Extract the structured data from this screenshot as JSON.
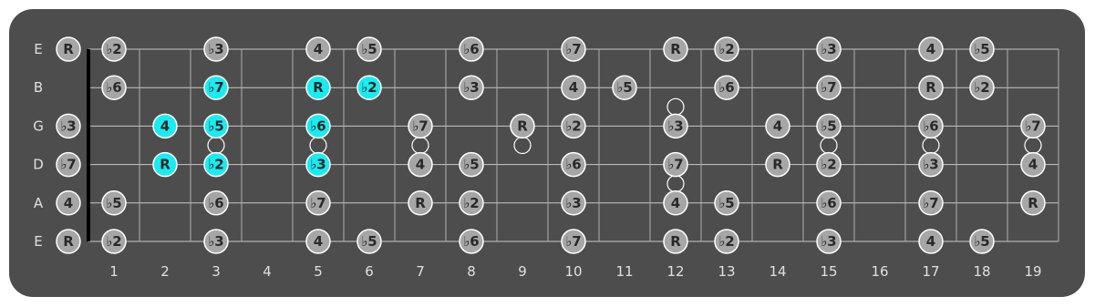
{
  "string_labels": [
    "E",
    "B",
    "G",
    "D",
    "A",
    "E"
  ],
  "fret_numbers": [
    1,
    2,
    3,
    4,
    5,
    6,
    7,
    8,
    9,
    10,
    11,
    12,
    13,
    14,
    15,
    16,
    17,
    18,
    19
  ],
  "note_color": "#a6a6a6",
  "highlight_color": "#1de9f0",
  "strings": [
    {
      "notes": [
        "R",
        "♭2",
        null,
        "♭3",
        null,
        "4",
        "♭5",
        null,
        "♭6",
        null,
        "♭7",
        null,
        "R",
        "♭2",
        null,
        "♭3",
        null,
        "4",
        "♭5",
        null
      ]
    },
    {
      "notes": [
        null,
        "♭6",
        null,
        {
          "label": "♭7",
          "highlight": true
        },
        null,
        {
          "label": "R",
          "highlight": true
        },
        {
          "label": "♭2",
          "highlight": true
        },
        null,
        "♭3",
        null,
        "4",
        "♭5",
        null,
        "♭6",
        null,
        "♭7",
        null,
        "R",
        "♭2",
        null
      ]
    },
    {
      "notes": [
        "♭3",
        null,
        {
          "label": "4",
          "highlight": true
        },
        {
          "label": "♭5",
          "highlight": true
        },
        null,
        {
          "label": "♭6",
          "highlight": true
        },
        null,
        "♭7",
        null,
        "R",
        "♭2",
        null,
        "♭3",
        null,
        "4",
        "♭5",
        null,
        "♭6",
        null,
        "♭7"
      ]
    },
    {
      "notes": [
        "♭7",
        null,
        {
          "label": "R",
          "highlight": true
        },
        {
          "label": "♭2",
          "highlight": true
        },
        null,
        {
          "label": "♭3",
          "highlight": true
        },
        null,
        "4",
        "♭5",
        null,
        "♭6",
        null,
        "♭7",
        null,
        "R",
        "♭2",
        null,
        "♭3",
        null,
        "4"
      ]
    },
    {
      "notes": [
        "4",
        "♭5",
        null,
        "♭6",
        null,
        "♭7",
        null,
        "R",
        "♭2",
        null,
        "♭3",
        null,
        "4",
        "♭5",
        null,
        "♭6",
        null,
        "♭7",
        null,
        "R"
      ]
    },
    {
      "notes": [
        "R",
        "♭2",
        null,
        "♭3",
        null,
        "4",
        "♭5",
        null,
        "♭6",
        null,
        "♭7",
        null,
        "R",
        "♭2",
        null,
        "♭3",
        null,
        "4",
        "♭5",
        null
      ]
    }
  ]
}
